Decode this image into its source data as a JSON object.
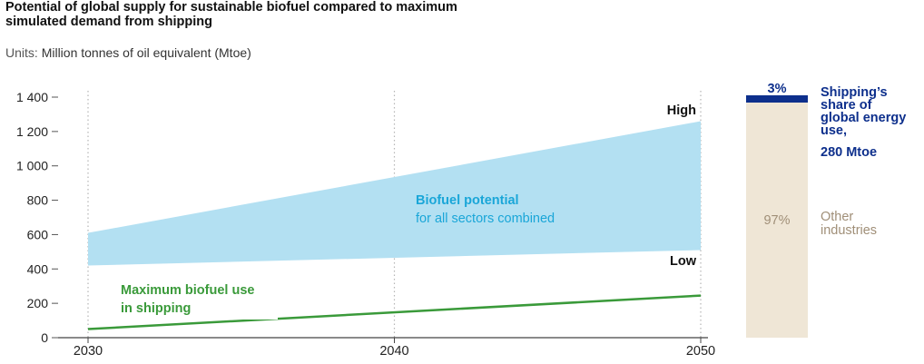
{
  "header": {
    "title": "Potential of global supply for sustainable biofuel compared to maximum simulated demand from shipping",
    "units_key": "Units:",
    "units_value": "Million tonnes of oil equivalent (Mtoe)"
  },
  "chart_data": [
    {
      "type": "area",
      "x_ticks": [
        "2030",
        "2040",
        "2050"
      ],
      "y_ticks": [
        "0",
        "200",
        "400",
        "600",
        "800",
        "1 000",
        "1 200",
        "1 400"
      ],
      "xlim": [
        2030,
        2050
      ],
      "ylim": [
        0,
        1400
      ],
      "grid": "vertical dotted at 2030, 2040, 2050",
      "series": [
        {
          "name": "Biofuel potential",
          "subtitle": "for all sectors combined",
          "kind": "band",
          "color": "#b3e0f2",
          "label_color": "#1aa6d8",
          "x": [
            2030,
            2050
          ],
          "low": [
            420,
            510
          ],
          "high": [
            610,
            1260
          ],
          "low_label": "Low",
          "high_label": "High"
        },
        {
          "name": "Maximum biofuel use in shipping",
          "label_line1": "Maximum biofuel use",
          "label_line2": "in shipping",
          "kind": "line",
          "color": "#3a9a3a",
          "x": [
            2030,
            2050
          ],
          "y": [
            50,
            245
          ]
        }
      ]
    },
    {
      "type": "bar",
      "stacked": true,
      "segments": [
        {
          "label": "3%",
          "value": 3,
          "color": "#0d2f8c",
          "desc_lines": [
            "Shipping’s",
            "share of",
            "global energy",
            "use,"
          ],
          "desc_bold": "280 Mtoe"
        },
        {
          "label": "97%",
          "value": 97,
          "color": "#efe6d6",
          "desc_lines": [
            "Other",
            "industries"
          ]
        }
      ]
    }
  ]
}
